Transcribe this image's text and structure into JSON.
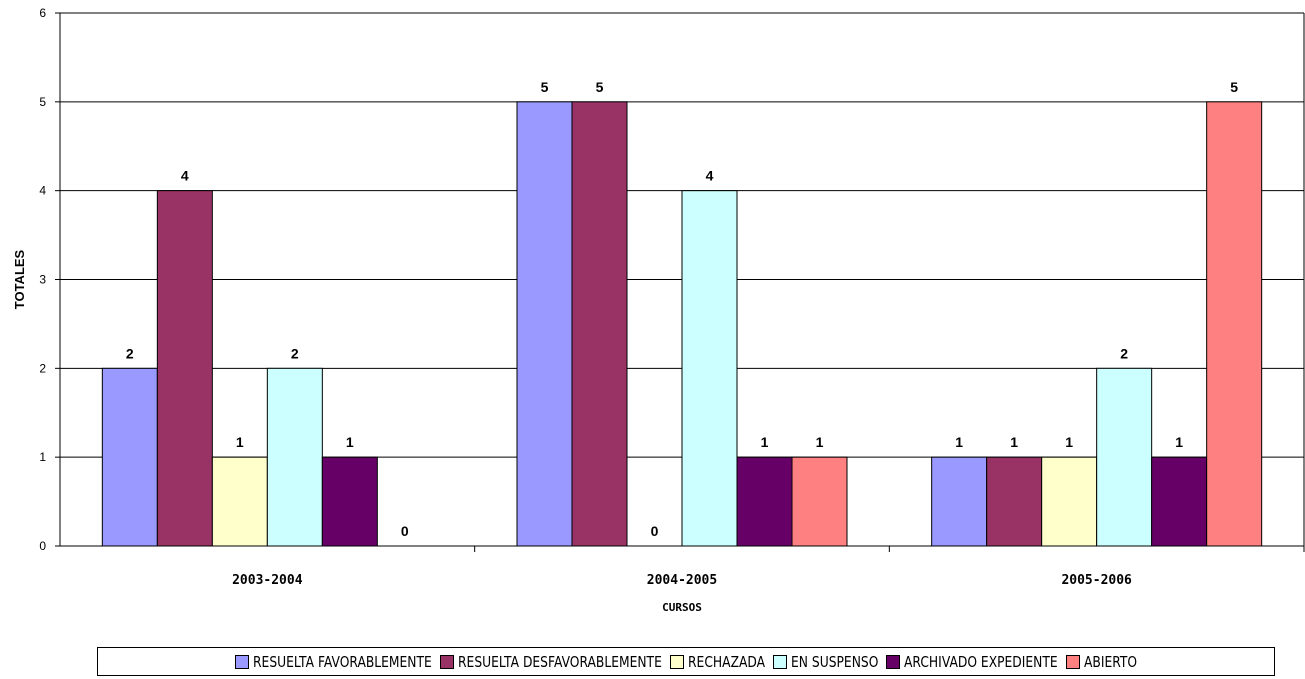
{
  "chart_data": {
    "type": "bar",
    "categories": [
      "2003-2004",
      "2004-2005",
      "2005-2006"
    ],
    "series": [
      {
        "name": "RESUELTA FAVORABLEMENTE",
        "values": [
          2,
          5,
          1
        ],
        "color": "#9999FF"
      },
      {
        "name": "RESUELTA DESFAVORABLEMENTE",
        "values": [
          4,
          5,
          1
        ],
        "color": "#993366"
      },
      {
        "name": "RECHAZADA",
        "values": [
          1,
          0,
          1
        ],
        "color": "#FFFFCC"
      },
      {
        "name": "EN SUSPENSO",
        "values": [
          2,
          4,
          2
        ],
        "color": "#CCFFFF"
      },
      {
        "name": "ARCHIVADO EXPEDIENTE",
        "values": [
          1,
          1,
          1
        ],
        "color": "#660066"
      },
      {
        "name": "ABIERTO",
        "values": [
          0,
          1,
          5
        ],
        "color": "#FF8080"
      }
    ],
    "title": "",
    "xlabel": "CURSOS",
    "ylabel": "TOTALES",
    "ylim": [
      0,
      6
    ],
    "yticks": [
      "0",
      "1",
      "2",
      "3",
      "4",
      "5",
      "6"
    ],
    "grid": true,
    "legend_position": "bottom",
    "data_labels": true
  }
}
